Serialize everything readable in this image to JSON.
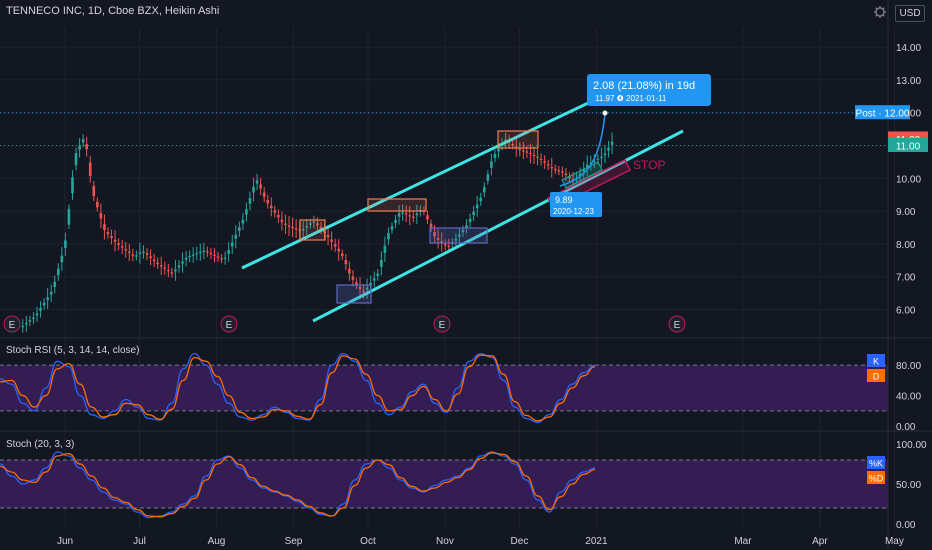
{
  "header": {
    "title": "TENNECO INC, 1D, Cboe BZX, Heikin Ashi",
    "currency": "USD",
    "gear_icon": "gear-icon"
  },
  "colors": {
    "background": "#131722",
    "grid": "#1f2330",
    "axis_text": "#d1d4dc",
    "bull": "#26a69a",
    "bear": "#ef5350",
    "channel": "#3ee4e4",
    "osc_band": "#3a1f5c",
    "k_line": "#2962ff",
    "d_line": "#ff6d00",
    "callout": "#2196f3",
    "stop": "#c2185b"
  },
  "chart_data": [
    {
      "type": "candlestick",
      "title": "TENNECO INC, 1D, Cboe BZX, Heikin Ashi",
      "x_ticks": [
        "Jun",
        "Jul",
        "Aug",
        "Sep",
        "Oct",
        "Nov",
        "Dec",
        "2021",
        "Mar",
        "Apr",
        "May"
      ],
      "y_ticks": [
        "6.00",
        "7.00",
        "8.00",
        "9.00",
        "10.00",
        "11.00",
        "12.00",
        "13.00",
        "14.00"
      ],
      "ylim": [
        5.3,
        14.6
      ],
      "price_path": [
        [
          "2020-05-15",
          5.5
        ],
        [
          "2020-05-20",
          5.8
        ],
        [
          "2020-05-27",
          6.6
        ],
        [
          "2020-06-01",
          8.0
        ],
        [
          "2020-06-05",
          10.7
        ],
        [
          "2020-06-09",
          11.3
        ],
        [
          "2020-06-12",
          9.6
        ],
        [
          "2020-06-17",
          8.4
        ],
        [
          "2020-06-22",
          8.0
        ],
        [
          "2020-06-29",
          7.6
        ],
        [
          "2020-07-02",
          7.8
        ],
        [
          "2020-07-08",
          7.4
        ],
        [
          "2020-07-14",
          7.1
        ],
        [
          "2020-07-20",
          7.6
        ],
        [
          "2020-07-27",
          7.8
        ],
        [
          "2020-08-04",
          7.5
        ],
        [
          "2020-08-12",
          8.8
        ],
        [
          "2020-08-17",
          10.0
        ],
        [
          "2020-08-21",
          9.3
        ],
        [
          "2020-08-28",
          8.6
        ],
        [
          "2020-09-04",
          8.4
        ],
        [
          "2020-09-09",
          8.7
        ],
        [
          "2020-09-14",
          8.3
        ],
        [
          "2020-09-21",
          7.6
        ],
        [
          "2020-09-24",
          7.0
        ],
        [
          "2020-09-29",
          6.5
        ],
        [
          "2020-10-05",
          7.1
        ],
        [
          "2020-10-09",
          8.3
        ],
        [
          "2020-10-14",
          9.0
        ],
        [
          "2020-10-19",
          8.8
        ],
        [
          "2020-10-23",
          9.1
        ],
        [
          "2020-10-28",
          8.2
        ],
        [
          "2020-11-02",
          7.9
        ],
        [
          "2020-11-06",
          8.2
        ],
        [
          "2020-11-10",
          8.6
        ],
        [
          "2020-11-16",
          9.5
        ],
        [
          "2020-11-20",
          10.6
        ],
        [
          "2020-11-25",
          11.2
        ],
        [
          "2020-11-30",
          10.9
        ],
        [
          "2020-12-04",
          10.8
        ],
        [
          "2020-12-09",
          10.6
        ],
        [
          "2020-12-14",
          10.3
        ],
        [
          "2020-12-18",
          10.2
        ],
        [
          "2020-12-23",
          9.9
        ],
        [
          "2020-12-28",
          10.4
        ],
        [
          "2021-01-04",
          10.7
        ],
        [
          "2021-01-08",
          11.2
        ]
      ],
      "annotations": {
        "markers": [
          "E",
          "E",
          "E",
          "E"
        ],
        "price_labels": [
          {
            "text": "Post · 12.00",
            "value": 12.0
          },
          {
            "text": "11.20",
            "value": 11.2
          },
          {
            "text": "11.00",
            "value": 11.0
          }
        ],
        "target_callout": {
          "line1": "2.08 (21.08%) in 19d",
          "line2": "11.97 ❹ 2021-01-11"
        },
        "entry_label": {
          "line1": "9.89",
          "line2": "2020-12-23"
        },
        "stop_label": "STOP"
      }
    },
    {
      "type": "line",
      "title": "Stoch RSI (5, 3, 14, 14, close)",
      "y_ticks": [
        "80.00",
        "40.00",
        "0.00"
      ],
      "ylim": [
        -5,
        105
      ],
      "band": [
        20,
        80
      ],
      "series": [
        {
          "name": "K",
          "values": [
            62,
            55,
            30,
            20,
            50,
            85,
            78,
            40,
            15,
            10,
            20,
            35,
            25,
            10,
            8,
            30,
            75,
            95,
            80,
            55,
            30,
            12,
            8,
            15,
            25,
            18,
            10,
            8,
            35,
            80,
            95,
            85,
            60,
            30,
            15,
            25,
            45,
            55,
            30,
            18,
            50,
            85,
            95,
            90,
            60,
            25,
            10,
            5,
            15,
            35,
            55,
            70,
            80
          ]
        },
        {
          "name": "D",
          "values": [
            58,
            60,
            40,
            25,
            40,
            75,
            82,
            55,
            25,
            12,
            15,
            30,
            28,
            15,
            9,
            22,
            60,
            90,
            85,
            65,
            40,
            18,
            10,
            12,
            22,
            20,
            13,
            9,
            28,
            70,
            92,
            88,
            68,
            40,
            20,
            22,
            40,
            52,
            35,
            20,
            42,
            78,
            93,
            92,
            68,
            32,
            14,
            7,
            12,
            30,
            50,
            66,
            78
          ]
        }
      ]
    },
    {
      "type": "line",
      "title": "Stoch (20, 3, 3)",
      "y_ticks": [
        "100.00",
        "50.00",
        "0.00"
      ],
      "ylim": [
        -5,
        110
      ],
      "band": [
        20,
        80
      ],
      "series": [
        {
          "name": "%K",
          "values": [
            75,
            60,
            50,
            55,
            70,
            90,
            85,
            70,
            55,
            40,
            30,
            25,
            15,
            8,
            10,
            15,
            25,
            35,
            60,
            80,
            85,
            70,
            55,
            45,
            40,
            35,
            28,
            20,
            12,
            10,
            25,
            55,
            75,
            80,
            70,
            55,
            45,
            40,
            48,
            55,
            60,
            70,
            85,
            90,
            85,
            75,
            55,
            30,
            15,
            40,
            55,
            65,
            70
          ]
        },
        {
          "name": "%D",
          "values": [
            72,
            65,
            55,
            52,
            65,
            85,
            88,
            75,
            60,
            45,
            33,
            27,
            18,
            10,
            9,
            13,
            22,
            32,
            55,
            75,
            84,
            74,
            58,
            47,
            41,
            36,
            30,
            22,
            14,
            10,
            20,
            48,
            70,
            80,
            74,
            58,
            47,
            41,
            45,
            52,
            58,
            68,
            82,
            89,
            87,
            78,
            60,
            35,
            18,
            34,
            50,
            62,
            68
          ]
        }
      ]
    }
  ]
}
